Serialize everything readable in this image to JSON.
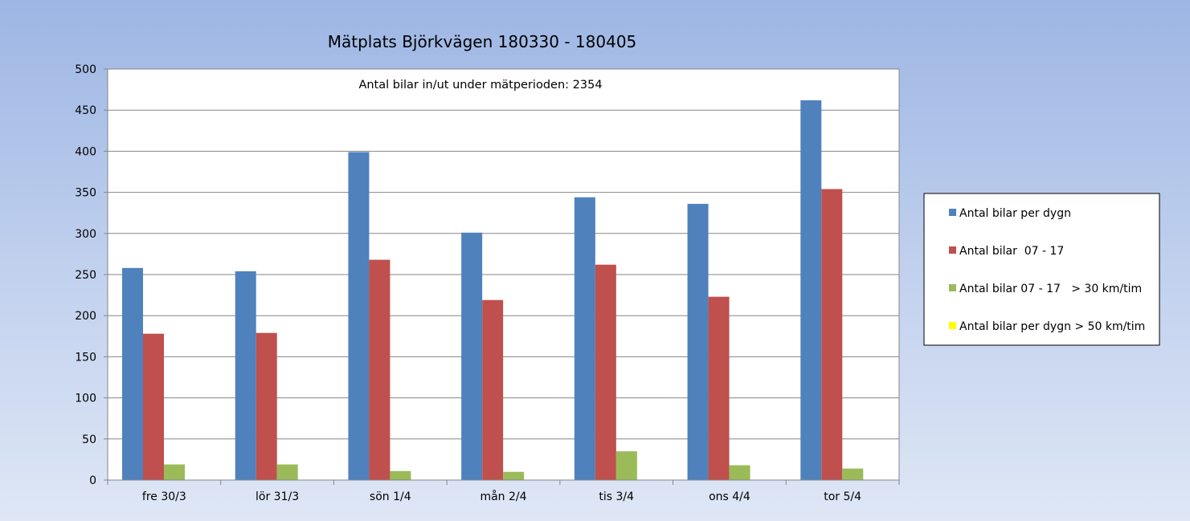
{
  "chart_data": {
    "type": "bar",
    "title": "Mätplats Björkvägen 180330 - 180405",
    "annotation": "Antal bilar in/ut under mätperioden:  2354",
    "xlabel": "",
    "ylabel": "",
    "ylim": [
      0,
      500
    ],
    "yticks": [
      0,
      50,
      100,
      150,
      200,
      250,
      300,
      350,
      400,
      450,
      500
    ],
    "grid": true,
    "legend_position": "right",
    "categories": [
      "fre 30/3",
      "lör 31/3",
      "sön 1/4",
      "mån 2/4",
      "tis 3/4",
      "ons 4/4",
      "tor 5/4"
    ],
    "series": [
      {
        "name": "Antal bilar per dygn",
        "color": "#4f81bd",
        "values": [
          258,
          254,
          399,
          301,
          344,
          336,
          462
        ]
      },
      {
        "name": "Antal bilar  07 - 17",
        "color": "#c0504d",
        "values": [
          178,
          179,
          268,
          219,
          262,
          223,
          354
        ]
      },
      {
        "name": "Antal bilar 07 - 17   > 30 km/tim",
        "color": "#9bbb59",
        "values": [
          19,
          19,
          11,
          10,
          35,
          18,
          14
        ]
      },
      {
        "name": "Antal bilar per dygn > 50 km/tim",
        "color": "#ffff00",
        "values": [
          0,
          0,
          0,
          0,
          0,
          0,
          0
        ]
      }
    ]
  }
}
